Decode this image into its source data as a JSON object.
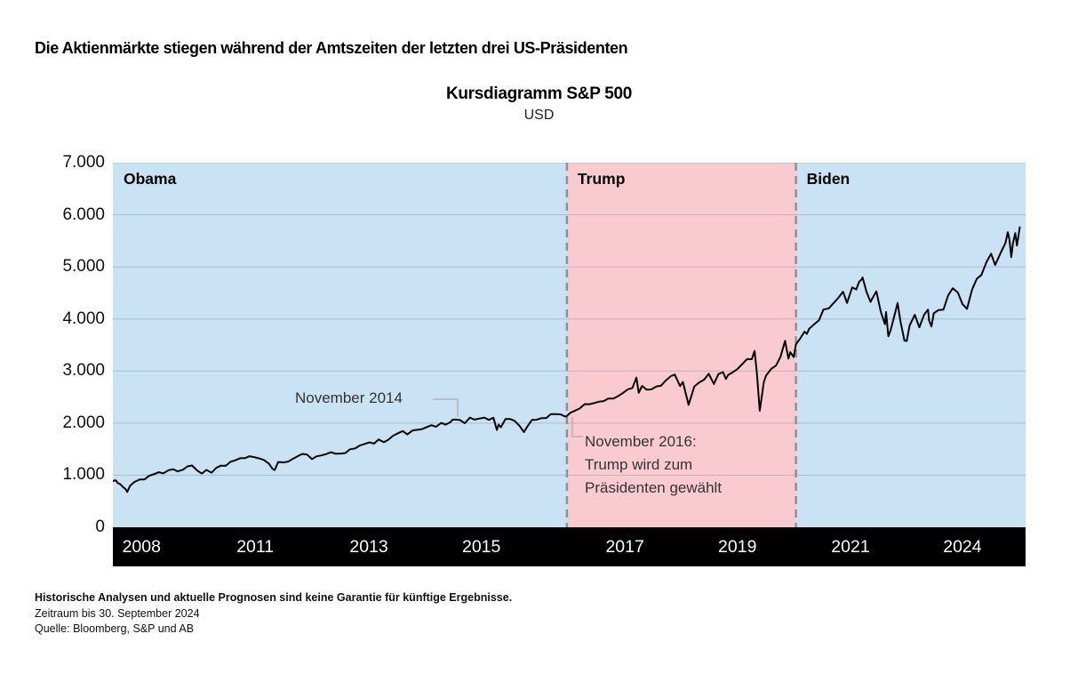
{
  "page": {
    "headline": "Die Aktienmärkte stiegen während der Amtszeiten der letzten drei US-Präsidenten",
    "footnotes": {
      "disclaimer": "Historische Analysen und aktuelle Prognosen sind keine Garantie für künftige Ergebnisse.",
      "period": "Zeitraum bis 30. September 2024",
      "source": "Quelle: Bloomberg, S&P und AB"
    }
  },
  "colors": {
    "obama_biden_region": "#c9e3f4",
    "trump_region": "#f9cbd0",
    "axis_band": "#000000",
    "line": "#000000",
    "divider": "#909090",
    "gridline": "rgba(120,130,140,0.4)",
    "connector": "#b3b3b3"
  },
  "chart_data": {
    "type": "line",
    "title": "Kursdiagramm S&P 500",
    "subtitle": "USD",
    "xlabel": "",
    "ylabel": "USD",
    "ylim": [
      0,
      7000
    ],
    "grid": true,
    "legend_position": "none",
    "y_ticks": [
      {
        "label": "7.000",
        "value": 7000
      },
      {
        "label": "6.000",
        "value": 6000
      },
      {
        "label": "5.000",
        "value": 5000
      },
      {
        "label": "4.000",
        "value": 4000
      },
      {
        "label": "3.000",
        "value": 3000
      },
      {
        "label": "2.000",
        "value": 2000
      },
      {
        "label": "1.000",
        "value": 1000
      },
      {
        "label": "0",
        "value": 0
      }
    ],
    "x_axis": {
      "start": 2008.95,
      "end": 2024.85
    },
    "x_ticks": [
      {
        "label": "2008",
        "x": 2009.45
      },
      {
        "label": "2011",
        "x": 2011.43
      },
      {
        "label": "2013",
        "x": 2013.41
      },
      {
        "label": "2015",
        "x": 2015.37
      },
      {
        "label": "2017",
        "x": 2017.87
      },
      {
        "label": "2019",
        "x": 2019.83
      },
      {
        "label": "2021",
        "x": 2021.8
      },
      {
        "label": "2024",
        "x": 2023.75
      }
    ],
    "regions": [
      {
        "label": "Obama",
        "start": 2008.95,
        "end": 2016.86,
        "color": "#c9e3f4"
      },
      {
        "label": "Trump",
        "start": 2016.86,
        "end": 2020.85,
        "color": "#f9cbd0"
      },
      {
        "label": "Biden",
        "start": 2020.85,
        "end": 2024.85,
        "color": "#c9e3f4"
      }
    ],
    "dividers": [
      2016.86,
      2020.85
    ],
    "annotations": [
      {
        "id": "nov-2014",
        "text": "November 2014"
      },
      {
        "id": "nov-2016",
        "lines": [
          "November 2016:",
          "Trump wird zum",
          "Präsidenten gewählt"
        ]
      }
    ],
    "series": [
      {
        "name": "S&P 500",
        "color": "#000000",
        "points": [
          [
            2008.95,
            890
          ],
          [
            2009.0,
            903
          ],
          [
            2009.04,
            845
          ],
          [
            2009.08,
            826
          ],
          [
            2009.13,
            770
          ],
          [
            2009.17,
            735
          ],
          [
            2009.2,
            677
          ],
          [
            2009.25,
            798
          ],
          [
            2009.33,
            873
          ],
          [
            2009.42,
            919
          ],
          [
            2009.5,
            919
          ],
          [
            2009.58,
            987
          ],
          [
            2009.67,
            1021
          ],
          [
            2009.75,
            1057
          ],
          [
            2009.83,
            1036
          ],
          [
            2009.92,
            1096
          ],
          [
            2010.0,
            1115
          ],
          [
            2010.08,
            1074
          ],
          [
            2010.17,
            1104
          ],
          [
            2010.25,
            1169
          ],
          [
            2010.33,
            1187
          ],
          [
            2010.42,
            1089
          ],
          [
            2010.5,
            1031
          ],
          [
            2010.58,
            1102
          ],
          [
            2010.67,
            1049
          ],
          [
            2010.75,
            1141
          ],
          [
            2010.83,
            1183
          ],
          [
            2010.92,
            1181
          ],
          [
            2011.0,
            1258
          ],
          [
            2011.08,
            1286
          ],
          [
            2011.17,
            1327
          ],
          [
            2011.25,
            1326
          ],
          [
            2011.33,
            1364
          ],
          [
            2011.42,
            1345
          ],
          [
            2011.5,
            1321
          ],
          [
            2011.58,
            1292
          ],
          [
            2011.67,
            1219
          ],
          [
            2011.73,
            1123
          ],
          [
            2011.77,
            1099
          ],
          [
            2011.83,
            1253
          ],
          [
            2011.92,
            1247
          ],
          [
            2012.0,
            1258
          ],
          [
            2012.08,
            1312
          ],
          [
            2012.17,
            1366
          ],
          [
            2012.25,
            1408
          ],
          [
            2012.33,
            1398
          ],
          [
            2012.42,
            1310
          ],
          [
            2012.5,
            1362
          ],
          [
            2012.58,
            1379
          ],
          [
            2012.67,
            1407
          ],
          [
            2012.75,
            1441
          ],
          [
            2012.83,
            1412
          ],
          [
            2012.92,
            1416
          ],
          [
            2013.0,
            1426
          ],
          [
            2013.08,
            1498
          ],
          [
            2013.17,
            1515
          ],
          [
            2013.25,
            1569
          ],
          [
            2013.33,
            1598
          ],
          [
            2013.42,
            1631
          ],
          [
            2013.5,
            1606
          ],
          [
            2013.58,
            1686
          ],
          [
            2013.67,
            1633
          ],
          [
            2013.75,
            1682
          ],
          [
            2013.83,
            1757
          ],
          [
            2013.92,
            1806
          ],
          [
            2014.0,
            1848
          ],
          [
            2014.08,
            1783
          ],
          [
            2014.17,
            1859
          ],
          [
            2014.25,
            1872
          ],
          [
            2014.33,
            1884
          ],
          [
            2014.42,
            1924
          ],
          [
            2014.5,
            1960
          ],
          [
            2014.58,
            1931
          ],
          [
            2014.67,
            2003
          ],
          [
            2014.75,
            1972
          ],
          [
            2014.83,
            2018
          ],
          [
            2014.87,
            2068
          ],
          [
            2014.92,
            2068
          ],
          [
            2015.0,
            2059
          ],
          [
            2015.08,
            1995
          ],
          [
            2015.17,
            2105
          ],
          [
            2015.25,
            2068
          ],
          [
            2015.33,
            2086
          ],
          [
            2015.42,
            2107
          ],
          [
            2015.5,
            2063
          ],
          [
            2015.58,
            2104
          ],
          [
            2015.64,
            1868
          ],
          [
            2015.67,
            1972
          ],
          [
            2015.71,
            1920
          ],
          [
            2015.79,
            2079
          ],
          [
            2015.87,
            2080
          ],
          [
            2015.95,
            2044
          ],
          [
            2016.04,
            1940
          ],
          [
            2016.11,
            1829
          ],
          [
            2016.17,
            1932
          ],
          [
            2016.25,
            2060
          ],
          [
            2016.33,
            2065
          ],
          [
            2016.42,
            2097
          ],
          [
            2016.5,
            2099
          ],
          [
            2016.58,
            2174
          ],
          [
            2016.67,
            2171
          ],
          [
            2016.75,
            2168
          ],
          [
            2016.83,
            2126
          ],
          [
            2016.86,
            2140
          ],
          [
            2016.92,
            2199
          ],
          [
            2017.0,
            2239
          ],
          [
            2017.08,
            2279
          ],
          [
            2017.17,
            2364
          ],
          [
            2017.25,
            2363
          ],
          [
            2017.33,
            2384
          ],
          [
            2017.42,
            2412
          ],
          [
            2017.5,
            2423
          ],
          [
            2017.58,
            2470
          ],
          [
            2017.67,
            2472
          ],
          [
            2017.75,
            2519
          ],
          [
            2017.83,
            2575
          ],
          [
            2017.92,
            2648
          ],
          [
            2018.0,
            2674
          ],
          [
            2018.07,
            2873
          ],
          [
            2018.11,
            2581
          ],
          [
            2018.17,
            2714
          ],
          [
            2018.25,
            2641
          ],
          [
            2018.33,
            2648
          ],
          [
            2018.42,
            2705
          ],
          [
            2018.5,
            2718
          ],
          [
            2018.58,
            2816
          ],
          [
            2018.67,
            2902
          ],
          [
            2018.74,
            2931
          ],
          [
            2018.83,
            2712
          ],
          [
            2018.88,
            2790
          ],
          [
            2018.98,
            2351
          ],
          [
            2019.08,
            2704
          ],
          [
            2019.17,
            2784
          ],
          [
            2019.25,
            2834
          ],
          [
            2019.33,
            2946
          ],
          [
            2019.42,
            2752
          ],
          [
            2019.5,
            2942
          ],
          [
            2019.58,
            2980
          ],
          [
            2019.63,
            2847
          ],
          [
            2019.67,
            2926
          ],
          [
            2019.75,
            2977
          ],
          [
            2019.83,
            3038
          ],
          [
            2019.92,
            3141
          ],
          [
            2020.0,
            3231
          ],
          [
            2020.08,
            3226
          ],
          [
            2020.13,
            3386
          ],
          [
            2020.17,
            2954
          ],
          [
            2020.22,
            2237
          ],
          [
            2020.29,
            2790
          ],
          [
            2020.33,
            2912
          ],
          [
            2020.42,
            3044
          ],
          [
            2020.5,
            3100
          ],
          [
            2020.58,
            3271
          ],
          [
            2020.66,
            3580
          ],
          [
            2020.72,
            3237
          ],
          [
            2020.75,
            3363
          ],
          [
            2020.81,
            3270
          ],
          [
            2020.85,
            3510
          ],
          [
            2020.92,
            3622
          ],
          [
            2021.0,
            3756
          ],
          [
            2021.04,
            3714
          ],
          [
            2021.08,
            3811
          ],
          [
            2021.17,
            3901
          ],
          [
            2021.25,
            3973
          ],
          [
            2021.33,
            4181
          ],
          [
            2021.42,
            4204
          ],
          [
            2021.5,
            4298
          ],
          [
            2021.58,
            4395
          ],
          [
            2021.67,
            4523
          ],
          [
            2021.74,
            4308
          ],
          [
            2021.83,
            4605
          ],
          [
            2021.9,
            4567
          ],
          [
            2021.95,
            4713
          ],
          [
            2022.0,
            4766
          ],
          [
            2022.01,
            4797
          ],
          [
            2022.08,
            4516
          ],
          [
            2022.15,
            4326
          ],
          [
            2022.17,
            4374
          ],
          [
            2022.25,
            4530
          ],
          [
            2022.33,
            4132
          ],
          [
            2022.4,
            3900
          ],
          [
            2022.42,
            4132
          ],
          [
            2022.46,
            3667
          ],
          [
            2022.5,
            3785
          ],
          [
            2022.58,
            4130
          ],
          [
            2022.62,
            4305
          ],
          [
            2022.67,
            3955
          ],
          [
            2022.74,
            3586
          ],
          [
            2022.78,
            3577
          ],
          [
            2022.83,
            3872
          ],
          [
            2022.92,
            4080
          ],
          [
            2023.0,
            3840
          ],
          [
            2023.08,
            4077
          ],
          [
            2023.15,
            4179
          ],
          [
            2023.17,
            3970
          ],
          [
            2023.21,
            3855
          ],
          [
            2023.25,
            4109
          ],
          [
            2023.33,
            4169
          ],
          [
            2023.42,
            4180
          ],
          [
            2023.5,
            4450
          ],
          [
            2023.58,
            4589
          ],
          [
            2023.67,
            4508
          ],
          [
            2023.75,
            4288
          ],
          [
            2023.83,
            4194
          ],
          [
            2023.92,
            4568
          ],
          [
            2024.0,
            4770
          ],
          [
            2024.08,
            4846
          ],
          [
            2024.17,
            5096
          ],
          [
            2024.25,
            5254
          ],
          [
            2024.32,
            5036
          ],
          [
            2024.42,
            5278
          ],
          [
            2024.5,
            5460
          ],
          [
            2024.54,
            5667
          ],
          [
            2024.57,
            5522
          ],
          [
            2024.6,
            5186
          ],
          [
            2024.63,
            5455
          ],
          [
            2024.67,
            5648
          ],
          [
            2024.7,
            5408
          ],
          [
            2024.75,
            5762
          ]
        ]
      }
    ]
  }
}
